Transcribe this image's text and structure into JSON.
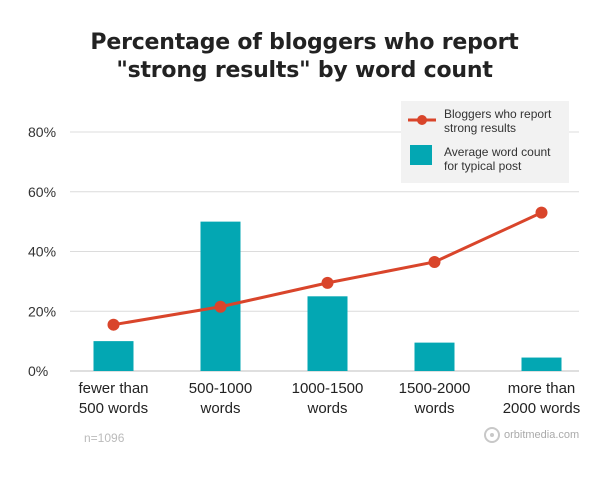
{
  "chart_data": {
    "type": "bar",
    "title_line1": "Percentage of bloggers who report",
    "title_line2": "\"strong results\" by word count",
    "categories": [
      [
        "fewer than",
        "500 words"
      ],
      [
        "500-1000",
        "words"
      ],
      [
        "1000-1500",
        "words"
      ],
      [
        "1500-2000",
        "words"
      ],
      [
        "more than",
        "2000 words"
      ]
    ],
    "series": [
      {
        "name": "Bloggers who report strong results",
        "legend_lines": [
          "Bloggers who report",
          "strong results"
        ],
        "kind": "line",
        "values": [
          15.5,
          21.5,
          29.5,
          36.5,
          53
        ],
        "color": "#d9452b"
      },
      {
        "name": "Average word count for typical post",
        "legend_lines": [
          "Average word count",
          "for typical post"
        ],
        "kind": "bar",
        "values": [
          10,
          50,
          25,
          9.5,
          4.5
        ],
        "color": "#03a7b3"
      }
    ],
    "ylim": [
      0,
      80
    ],
    "yticks": [
      0,
      20,
      40,
      60,
      80
    ],
    "ytick_labels": [
      "0%",
      "20%",
      "40%",
      "60%",
      "80%"
    ],
    "grid": true,
    "legend_position": "top-right",
    "note": "n=1096",
    "source": "orbitmedia.com"
  }
}
